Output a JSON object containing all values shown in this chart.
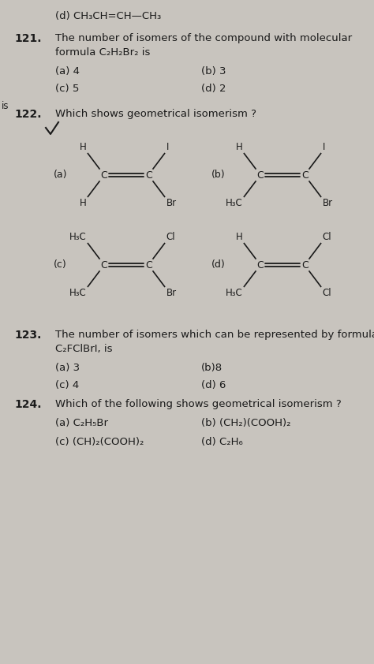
{
  "bg_color": "#c8c4be",
  "text_color": "#1a1a1a",
  "line_color": "#1a1a1a",
  "top_line": "(d) CH₃CH=CH—CH₃",
  "q121_a": "(a) 4",
  "q121_b": "(b) 3",
  "q121_c": "(c) 5",
  "q121_d": "(d) 2",
  "q123_a": "(a) 3",
  "q123_b": "(b)8",
  "q123_c": "(c) 4",
  "q123_d": "(d) 6",
  "q124_a": "(a) C₂H₅Br",
  "q124_b": "(b) (CH₂)(COOH)₂",
  "q124_c": "(c) (CH)₂(COOH)₂",
  "q124_d": "(d) C₂H₆",
  "struct_a_tl_top": "H",
  "struct_a_tl_bot": "H",
  "struct_a_tr_top": "I",
  "struct_a_tr_bot": "Br",
  "struct_b_tl_top": "H",
  "struct_b_tl_bot": "H₃C",
  "struct_b_tr_top": "I",
  "struct_b_tr_bot": "Br",
  "struct_c_tl_top": "H₃C",
  "struct_c_tl_bot": "H₃C",
  "struct_c_tr_top": "Cl",
  "struct_c_tr_bot": "Br",
  "struct_d_tl_top": "H",
  "struct_d_tl_bot": "H₃C",
  "struct_d_tr_top": "Cl",
  "struct_d_tr_bot": "Cl"
}
